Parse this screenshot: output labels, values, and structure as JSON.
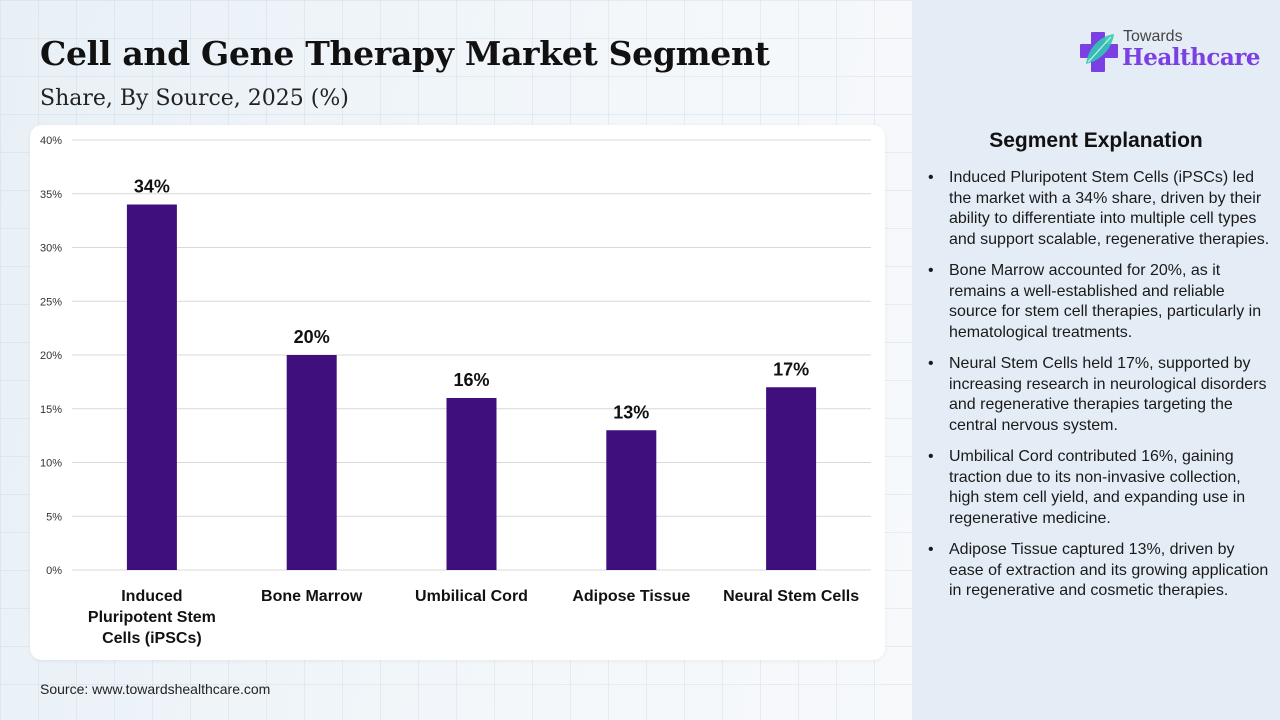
{
  "header": {
    "title": "Cell and Gene Therapy Market Segment",
    "subtitle": "Share, By Source, 2025 (%)"
  },
  "logo": {
    "line1": "Towards",
    "line2": "Healthcare",
    "colors": {
      "purple": "#7b3fe4",
      "teal": "#2fc9b0"
    }
  },
  "source": "Source: www.towardshealthcare.com",
  "chart_data": {
    "type": "bar",
    "title": "Cell and Gene Therapy Market Segment",
    "subtitle": "Share, By Source, 2025 (%)",
    "categories": [
      "Induced Pluripotent Stem Cells (iPSCs)",
      "Bone Marrow",
      "Umbilical Cord",
      "Adipose Tissue",
      "Neural Stem Cells"
    ],
    "category_lines": [
      [
        "Induced",
        "Pluripotent Stem",
        "Cells (iPSCs)"
      ],
      [
        "Bone Marrow"
      ],
      [
        "Umbilical Cord"
      ],
      [
        "Adipose Tissue"
      ],
      [
        "Neural Stem Cells"
      ]
    ],
    "values": [
      34,
      20,
      16,
      13,
      17
    ],
    "data_labels": [
      "34%",
      "20%",
      "16%",
      "13%",
      "17%"
    ],
    "xlabel": "",
    "ylabel": "",
    "ylim": [
      0,
      40
    ],
    "yticks": [
      0,
      5,
      10,
      15,
      20,
      25,
      30,
      35,
      40
    ],
    "ytick_labels": [
      "0%",
      "5%",
      "10%",
      "15%",
      "20%",
      "25%",
      "30%",
      "35%",
      "40%"
    ],
    "grid": true,
    "legend": "none",
    "bar_color": "#3f0f7e"
  },
  "explanation": {
    "title": "Segment Explanation",
    "bullet": "•",
    "items": [
      "Induced Pluripotent Stem Cells (iPSCs) led the market with a 34% share, driven by their ability to differentiate into multiple cell types and support scalable, regenerative therapies.",
      "Bone Marrow accounted for 20%, as it remains a well-established and reliable source for stem cell therapies, particularly in hematological treatments.",
      "Neural Stem Cells held 17%, supported by increasing research in neurological disorders and regenerative therapies targeting the central nervous system.",
      "Umbilical Cord contributed 16%, gaining traction due to its non-invasive collection, high stem cell yield, and expanding use in regenerative medicine.",
      "Adipose Tissue captured 13%, driven by ease of extraction and its growing application in regenerative and cosmetic therapies."
    ]
  }
}
